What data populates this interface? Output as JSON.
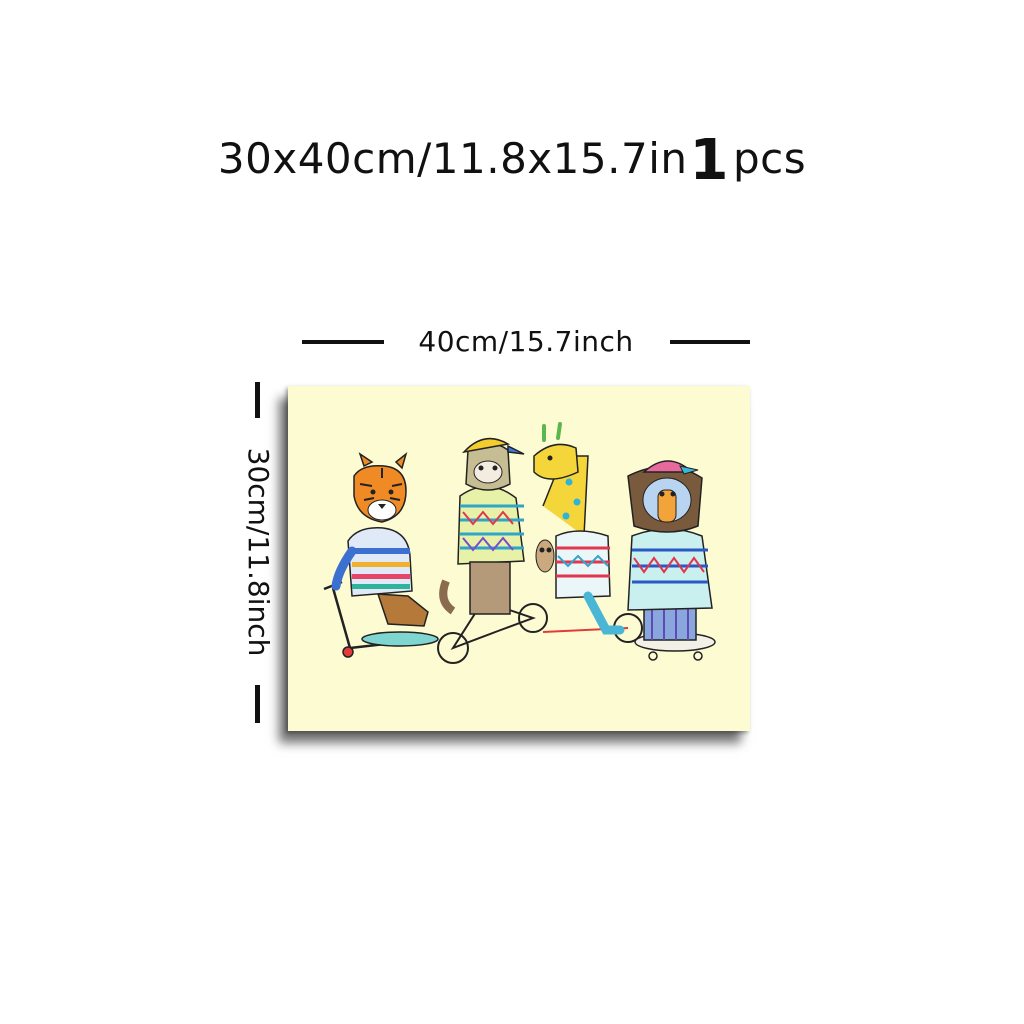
{
  "title": {
    "main": "30x40cm/11.8x15.7in",
    "qty_number": "1",
    "qty_unit": "pcs"
  },
  "dimensions": {
    "width_label": "40cm/15.7inch",
    "height_label": "30cm/11.8inch"
  },
  "colors": {
    "canvas_bg": "#fdfbd2",
    "dimension_line": "#111111"
  }
}
